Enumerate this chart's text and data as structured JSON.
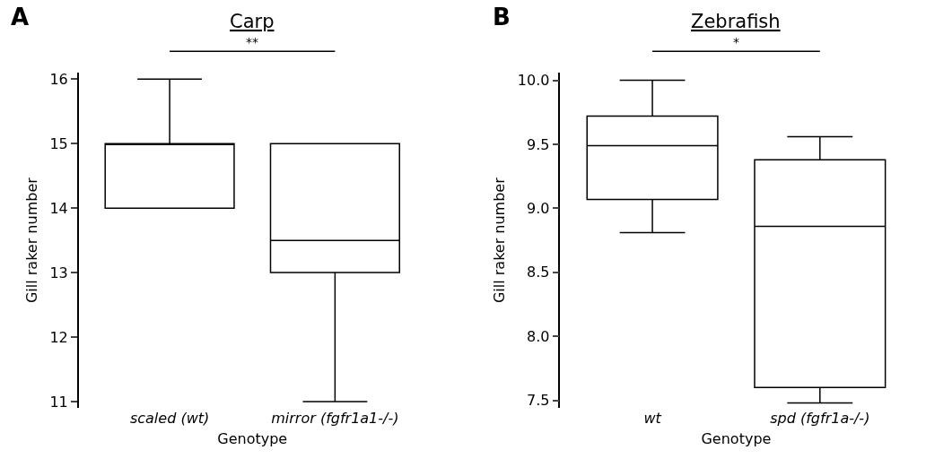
{
  "chart_data": [
    {
      "type": "box",
      "title": "Carp",
      "xlabel": "Genotype",
      "ylabel": "Gill raker number",
      "categories": [
        "scaled (wt)",
        "mirror (fgfr1a1-/-)"
      ],
      "color": "#000000",
      "boxes": [
        {
          "low": 14,
          "q1": 14,
          "median": 15,
          "q3": 15,
          "high": 16
        },
        {
          "low": 11,
          "q1": 13,
          "median": 13.5,
          "q3": 15,
          "high": 15
        }
      ],
      "ylim": [
        10.9,
        16.1
      ],
      "yticks": [
        11,
        12,
        13,
        14,
        15,
        16
      ],
      "annotations": [
        "A",
        "**"
      ]
    },
    {
      "type": "box",
      "title": "Zebrafish",
      "xlabel": "Genotype",
      "ylabel": "Gill raker number",
      "categories": [
        "wt",
        "spd (fgfr1a-/-)"
      ],
      "color": "#000000",
      "boxes": [
        {
          "low": 8.81,
          "q1": 9.07,
          "median": 9.49,
          "q3": 9.72,
          "high": 10.0
        },
        {
          "low": 7.48,
          "q1": 7.6,
          "median": 8.86,
          "q3": 9.38,
          "high": 9.56
        }
      ],
      "ylim": [
        7.44,
        10.06
      ],
      "yticks": [
        {
          "value": 7.5,
          "label": "7.5"
        },
        {
          "value": 8.0,
          "label": "8.0"
        },
        {
          "value": 8.5,
          "label": "8.5"
        },
        {
          "value": 9.0,
          "label": "9.0"
        },
        {
          "value": 9.5,
          "label": "9.5"
        },
        {
          "value": 10.0,
          "label": "10.0"
        }
      ],
      "annotations": [
        "B",
        "*"
      ]
    }
  ]
}
